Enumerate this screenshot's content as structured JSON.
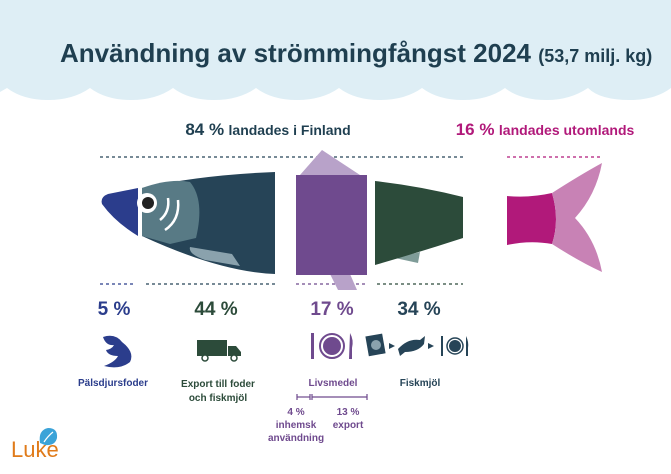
{
  "title": {
    "main": "Användning av strömmingfångst 2024",
    "sub": "(53,7 milj. kg)"
  },
  "landed_finland": {
    "percent": "84 %",
    "label": "landades i Finland"
  },
  "landed_abroad": {
    "percent": "16 %",
    "label": "landades utomlands"
  },
  "categories": [
    {
      "percent": "5 %",
      "label": "Pälsdjursfoder",
      "icon": "mink-icon",
      "color": "#2b3d8c"
    },
    {
      "percent": "44 %",
      "label_line1": "Export till foder",
      "label_line2": "och fiskmjöl",
      "icon": "truck-icon",
      "color": "#2c4b3a"
    },
    {
      "percent": "17 %",
      "label": "Livsmedel",
      "icon": "plate-cutlery-icon",
      "color": "#6f4a8e"
    },
    {
      "percent": "34 %",
      "label": "Fiskmjöl",
      "icon": "fishmeal-chain-icon",
      "color": "#264457"
    }
  ],
  "food_split": [
    {
      "percent": "4 %",
      "label_line1": "inhemsk",
      "label_line2": "användning"
    },
    {
      "percent": "13 %",
      "label": "export"
    }
  ],
  "logo": {
    "text": "Luke"
  },
  "colors": {
    "sky": "#deeef5",
    "title": "#1f3f50",
    "magenta": "#b1197a",
    "pink": "#c882b5",
    "orange": "#e07b1a"
  }
}
